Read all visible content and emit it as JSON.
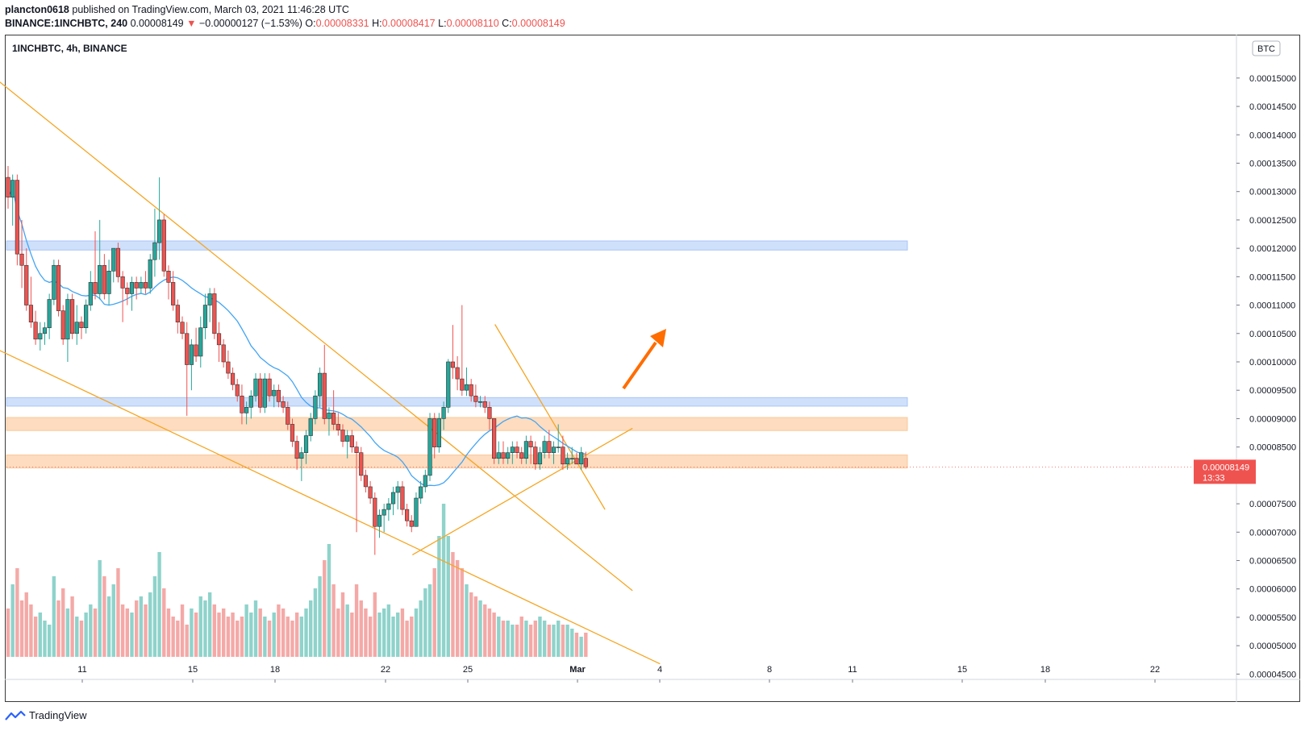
{
  "header": {
    "author": "plancton0618",
    "published_text": "published on TradingView.com, March 03, 2021 11:46:28 UTC",
    "symbol_line": "BINANCE:1INCHBTC, 240",
    "last": "0.00008149",
    "change": "−0.00000127 (−1.53%)",
    "o_label": "O:",
    "o": "0.00008331",
    "h_label": "H:",
    "h": "0.00008417",
    "l_label": "L:",
    "l": "0.00008110",
    "c_label": "C:",
    "c": "0.00008149"
  },
  "chart_title": "1INCHBTC, 4h, BINANCE",
  "currency_badge": "BTC",
  "price_tag": {
    "value": "0.00008149",
    "countdown": "13:33"
  },
  "footer": {
    "brand": "TradingView"
  },
  "colors": {
    "up": "#26a69a",
    "down": "#ef5350",
    "vol_up": "#8fd3cb",
    "vol_down": "#f4a9a7",
    "ma": "#42a5f5",
    "trend": "#f5a623",
    "arrow": "#ff6d00",
    "zone_blue": "#cfe0fb",
    "zone_orange": "#fddcbf"
  },
  "chart_data": {
    "type": "candlestick",
    "y_axis_ticks": [
      "0.00015000",
      "0.00014500",
      "0.00014000",
      "0.00013500",
      "0.00013000",
      "0.00012500",
      "0.00012000",
      "0.00011500",
      "0.00011000",
      "0.00010500",
      "0.00010000",
      "0.00009500",
      "0.00009000",
      "0.00008500",
      "0.00007500",
      "0.00007000",
      "0.00006500",
      "0.00006000",
      "0.00005500",
      "0.00005000",
      "0.00004500"
    ],
    "x_axis_ticks": [
      "11",
      "15",
      "18",
      "22",
      "25",
      "Mar",
      "4",
      "8",
      "11",
      "15",
      "18",
      "22"
    ],
    "ylim": [
      4.42e-05,
      0.0001575
    ],
    "zones": [
      {
        "color": "blue",
        "from": 0.0001197,
        "to": 0.0001213
      },
      {
        "color": "blue",
        "from": 9.22e-05,
        "to": 9.37e-05
      },
      {
        "color": "orange",
        "from": 8.79e-05,
        "to": 9.02e-05
      },
      {
        "color": "orange",
        "from": 8.13e-05,
        "to": 8.36e-05
      }
    ],
    "trendlines": [
      {
        "from": [
          "Feb 06",
          0.0001571
        ],
        "to": [
          "Mar 03",
          5.97e-05
        ]
      },
      {
        "from": [
          "Feb 06",
          0.0001066
        ],
        "to": [
          "Mar 04",
          4.68e-05
        ]
      },
      {
        "from": [
          "Feb 23",
          6.6e-05
        ],
        "to": [
          "Mar 03",
          8.83e-05
        ]
      },
      {
        "from": [
          "Feb 26",
          0.0001066
        ],
        "to": [
          "Mar 02",
          7.4e-05
        ]
      }
    ],
    "annotation": "up-arrow near Mar 03 toward 0.0001040",
    "candles_ohlc": [
      [
        0.0001325,
        0.0001345,
        0.000127,
        0.000129
      ],
      [
        0.000129,
        0.000133,
        0.000124,
        0.000132
      ],
      [
        0.000132,
        0.000133,
        0.000117,
        0.000119
      ],
      [
        0.000119,
        0.000125,
        0.000113,
        0.000117
      ],
      [
        0.000117,
        0.00012,
        0.000109,
        0.00011
      ],
      [
        0.00011,
        0.000115,
        0.000106,
        0.000107
      ],
      [
        0.000107,
        0.000109,
        0.000103,
        0.000104
      ],
      [
        0.000104,
        0.000107,
        0.000102,
        0.000105
      ],
      [
        0.000105,
        0.000107,
        0.000103,
        0.000106
      ],
      [
        0.000106,
        0.000112,
        0.000104,
        0.000111
      ],
      [
        0.000111,
        0.000118,
        0.00011,
        0.000117
      ],
      [
        0.000117,
        0.000118,
        0.000108,
        0.000109
      ],
      [
        0.000109,
        0.00011,
        0.000103,
        0.000104
      ],
      [
        0.000104,
        0.000112,
        0.0001,
        0.000111
      ],
      [
        0.000111,
        0.000112,
        0.000104,
        0.000105
      ],
      [
        0.000105,
        0.00011,
        0.000103,
        0.000107
      ],
      [
        0.000107,
        0.000108,
        0.000104,
        0.000106
      ],
      [
        0.000106,
        0.000111,
        0.000105,
        0.00011
      ],
      [
        0.00011,
        0.000116,
        0.000109,
        0.000114
      ],
      [
        0.000114,
        0.000123,
        0.000111,
        0.000112
      ],
      [
        0.000112,
        0.000125,
        0.000111,
        0.000117
      ],
      [
        0.000117,
        0.000119,
        0.000111,
        0.000112
      ],
      [
        0.000112,
        0.000118,
        0.00011,
        0.000116
      ],
      [
        0.000116,
        0.00012,
        0.000114,
        0.00012
      ],
      [
        0.00012,
        0.000121,
        0.000114,
        0.000115
      ],
      [
        0.000115,
        0.000116,
        0.000107,
        0.000113
      ],
      [
        0.000113,
        0.000114,
        0.00011,
        0.000112
      ],
      [
        0.000112,
        0.000115,
        0.000109,
        0.000114
      ],
      [
        0.000114,
        0.000115,
        0.000111,
        0.000113
      ],
      [
        0.000113,
        0.000115,
        0.000112,
        0.000114
      ],
      [
        0.000114,
        0.000116,
        0.000112,
        0.000113
      ],
      [
        0.000113,
        0.000119,
        0.000112,
        0.000118
      ],
      [
        0.000118,
        0.000127,
        0.000115,
        0.000121
      ],
      [
        0.000121,
        0.0001325,
        0.000118,
        0.000125
      ],
      [
        0.000125,
        0.000126,
        0.000115,
        0.000116
      ],
      [
        0.000116,
        0.000117,
        0.000111,
        0.000114
      ],
      [
        0.000114,
        0.000116,
        0.000109,
        0.00011
      ],
      [
        0.00011,
        0.000111,
        0.000105,
        0.000107
      ],
      [
        0.000107,
        0.000108,
        0.000104,
        0.000105
      ],
      [
        0.000105,
        0.000107,
        9.05e-05,
        9.95e-05
      ],
      [
        9.95e-05,
        0.000104,
        9.5e-05,
        0.000103
      ],
      [
        0.000103,
        0.000106,
        0.0001,
        0.000101
      ],
      [
        0.000101,
        0.000108,
        9.9e-05,
        0.000106
      ],
      [
        0.000106,
        0.000112,
        0.000104,
        0.00011
      ],
      [
        0.00011,
        0.000113,
        0.000107,
        0.000112
      ],
      [
        0.000112,
        0.000113,
        0.000104,
        0.000105
      ],
      [
        0.000105,
        0.000107,
        0.0001,
        0.000103
      ],
      [
        0.000103,
        0.000104,
        9.9e-05,
        0.0001
      ],
      [
        0.0001,
        0.000102,
        9.7e-05,
        9.8e-05
      ],
      [
        9.8e-05,
        9.9e-05,
        9.5e-05,
        9.6e-05
      ],
      [
        9.6e-05,
        9.7e-05,
        9.3e-05,
        9.4e-05
      ],
      [
        9.4e-05,
        9.6e-05,
        8.9e-05,
        9.1e-05
      ],
      [
        9.1e-05,
        9.3e-05,
        8.9e-05,
        9.2e-05
      ],
      [
        9.2e-05,
        9.5e-05,
        9e-05,
        9.4e-05
      ],
      [
        9.4e-05,
        9.8e-05,
        9.3e-05,
        9.7e-05
      ],
      [
        9.7e-05,
        9.8e-05,
        9.1e-05,
        9.2e-05
      ],
      [
        9.2e-05,
        9.8e-05,
        9.1e-05,
        9.7e-05
      ],
      [
        9.7e-05,
        9.8e-05,
        9.3e-05,
        9.4e-05
      ],
      [
        9.4e-05,
        9.6e-05,
        9.2e-05,
        9.5e-05
      ],
      [
        9.5e-05,
        9.6e-05,
        9.2e-05,
        9.3e-05
      ],
      [
        9.3e-05,
        9.4e-05,
        9.1e-05,
        9.2e-05
      ],
      [
        9.2e-05,
        9.3e-05,
        8.8e-05,
        8.9e-05
      ],
      [
        8.9e-05,
        9e-05,
        8.5e-05,
        8.6e-05
      ],
      [
        8.6e-05,
        8.7e-05,
        8.1e-05,
        8.3e-05
      ],
      [
        8.3e-05,
        8.5e-05,
        7.9e-05,
        8.4e-05
      ],
      [
        8.4e-05,
        8.8e-05,
        8.2e-05,
        8.7e-05
      ],
      [
        8.7e-05,
        9.1e-05,
        8.6e-05,
        9e-05
      ],
      [
        9e-05,
        9.5e-05,
        8.9e-05,
        9.4e-05
      ],
      [
        9.4e-05,
        9.9e-05,
        9.2e-05,
        9.8e-05
      ],
      [
        9.8e-05,
        0.000103,
        8.9e-05,
        9e-05
      ],
      [
        9e-05,
        9.2e-05,
        8.7e-05,
        9.1e-05
      ],
      [
        9.1e-05,
        9.5e-05,
        8.8e-05,
        8.9e-05
      ],
      [
        8.9e-05,
        9.1e-05,
        8.7e-05,
        8.8e-05
      ],
      [
        8.8e-05,
        8.9e-05,
        8.5e-05,
        8.6e-05
      ],
      [
        8.6e-05,
        8.8e-05,
        8.3e-05,
        8.7e-05
      ],
      [
        8.7e-05,
        8.8e-05,
        8.4e-05,
        8.5e-05
      ],
      [
        8.5e-05,
        8.6e-05,
        7e-05,
        8.4e-05
      ],
      [
        8.4e-05,
        8.5e-05,
        7.9e-05,
        8e-05
      ],
      [
        8e-05,
        8.1e-05,
        7.7e-05,
        7.8e-05
      ],
      [
        7.8e-05,
        7.9e-05,
        7.5e-05,
        7.6e-05
      ],
      [
        7.6e-05,
        7.7e-05,
        6.6e-05,
        7.1e-05
      ],
      [
        7.1e-05,
        7.4e-05,
        6.9e-05,
        7.3e-05
      ],
      [
        7.3e-05,
        7.5e-05,
        7e-05,
        7.4e-05
      ],
      [
        7.4e-05,
        7.6e-05,
        7.2e-05,
        7.5e-05
      ],
      [
        7.5e-05,
        7.8e-05,
        7.3e-05,
        7.7e-05
      ],
      [
        7.7e-05,
        7.9e-05,
        7.4e-05,
        7.8e-05
      ],
      [
        7.8e-05,
        7.9e-05,
        7.3e-05,
        7.4e-05
      ],
      [
        7.4e-05,
        7.5e-05,
        7.1e-05,
        7.2e-05
      ],
      [
        7.2e-05,
        7.3e-05,
        7e-05,
        7.1e-05
      ],
      [
        7.1e-05,
        7.7e-05,
        7.1e-05,
        7.6e-05
      ],
      [
        7.6e-05,
        7.9e-05,
        7.5e-05,
        7.8e-05
      ],
      [
        7.8e-05,
        8.1e-05,
        7.7e-05,
        8e-05
      ],
      [
        8e-05,
        9.1e-05,
        7.9e-05,
        9e-05
      ],
      [
        9e-05,
        9.1e-05,
        8.3e-05,
        8.5e-05
      ],
      [
        8.5e-05,
        9.1e-05,
        8.4e-05,
        9e-05
      ],
      [
        9e-05,
        9.3e-05,
        8.8e-05,
        9.2e-05
      ],
      [
        9.2e-05,
        0.0001005,
        9.1e-05,
        0.0001
      ],
      [
        0.0001,
        0.0001065,
        9.7e-05,
        9.9e-05
      ],
      [
        9.9e-05,
        0.000101,
        9.5e-05,
        9.7e-05
      ],
      [
        9.7e-05,
        0.00011,
        9.4e-05,
        9.5e-05
      ],
      [
        9.5e-05,
        9.9e-05,
        9.4e-05,
        9.6e-05
      ],
      [
        9.6e-05,
        9.7e-05,
        9.3e-05,
        9.4e-05
      ],
      [
        9.4e-05,
        9.6e-05,
        9.2e-05,
        9.3e-05
      ],
      [
        9.3e-05,
        9.4e-05,
        9.2e-05,
        9.3e-05
      ],
      [
        9.3e-05,
        9.4e-05,
        9.1e-05,
        9.2e-05
      ],
      [
        9.2e-05,
        9.3e-05,
        8.8e-05,
        9e-05
      ],
      [
        9e-05,
        9e-05,
        8.2e-05,
        8.3e-05
      ],
      [
        8.3e-05,
        8.6e-05,
        8.2e-05,
        8.4e-05
      ],
      [
        8.4e-05,
        8.6e-05,
        8.2e-05,
        8.3e-05
      ],
      [
        8.3e-05,
        8.5e-05,
        8.2e-05,
        8.4e-05
      ],
      [
        8.4e-05,
        8.6e-05,
        8.2e-05,
        8.5e-05
      ],
      [
        8.5e-05,
        8.6e-05,
        8.3e-05,
        8.4e-05
      ],
      [
        8.4e-05,
        8.5e-05,
        8.2e-05,
        8.3e-05
      ],
      [
        8.3e-05,
        8.7e-05,
        8.2e-05,
        8.6e-05
      ],
      [
        8.6e-05,
        8.7e-05,
        8.2e-05,
        8.5e-05
      ],
      [
        8.5e-05,
        8.6e-05,
        8.1e-05,
        8.2e-05
      ],
      [
        8.2e-05,
        8.5e-05,
        8.1e-05,
        8.4e-05
      ],
      [
        8.4e-05,
        8.7e-05,
        8.3e-05,
        8.6e-05
      ],
      [
        8.6e-05,
        8.8e-05,
        8.3e-05,
        8.4e-05
      ],
      [
        8.4e-05,
        8.6e-05,
        8.2e-05,
        8.5e-05
      ],
      [
        8.5e-05,
        8.9e-05,
        8.4e-05,
        8.5e-05
      ],
      [
        8.5e-05,
        8.7e-05,
        8.1e-05,
        8.2e-05
      ],
      [
        8.2e-05,
        8.4e-05,
        8.1e-05,
        8.3e-05
      ],
      [
        8.3e-05,
        8.5e-05,
        8.2e-05,
        8.3e-05
      ],
      [
        8.3e-05,
        8.4e-05,
        8.2e-05,
        8.2e-05
      ],
      [
        8.2e-05,
        8.5e-05,
        8.1e-05,
        8.4e-05
      ],
      [
        8.3e-05,
        8.417e-05,
        8.11e-05,
        8.149e-05
      ]
    ],
    "volume": [
      12,
      18,
      22,
      14,
      16,
      13,
      10,
      11,
      9,
      8,
      20,
      14,
      17,
      12,
      15,
      10,
      9,
      11,
      13,
      12,
      24,
      20,
      15,
      18,
      22,
      13,
      12,
      11,
      14,
      15,
      13,
      16,
      20,
      26,
      17,
      12,
      10,
      9,
      13,
      8,
      12,
      11,
      15,
      14,
      16,
      13,
      11,
      12,
      10,
      11,
      9,
      10,
      13,
      11,
      14,
      12,
      10,
      9,
      11,
      13,
      12,
      10,
      9,
      11,
      10,
      12,
      14,
      17,
      20,
      24,
      28,
      18,
      12,
      16,
      13,
      11,
      18,
      14,
      12,
      10,
      16,
      11,
      12,
      13,
      10,
      11,
      12,
      9,
      10,
      12,
      14,
      17,
      18,
      22,
      30,
      38,
      30,
      26,
      24,
      22,
      18,
      16,
      15,
      14,
      13,
      12,
      11,
      10,
      9,
      9,
      8,
      8,
      10,
      9,
      8,
      9,
      10,
      9,
      8,
      8,
      9,
      8,
      8,
      7,
      6,
      5,
      6,
      7,
      5,
      5
    ],
    "volume_ylim": [
      0,
      40
    ]
  }
}
